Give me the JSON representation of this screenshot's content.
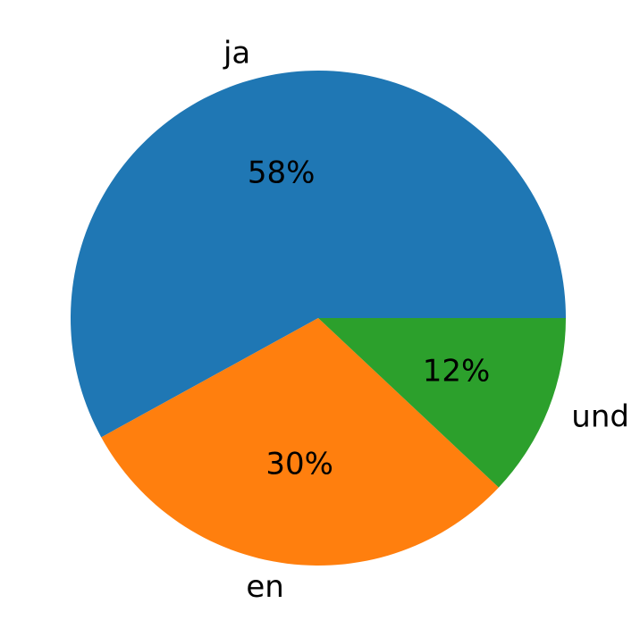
{
  "chart_data": {
    "type": "pie",
    "categories": [
      "ja",
      "en",
      "und"
    ],
    "values": [
      58,
      30,
      12
    ],
    "value_labels": [
      "58%",
      "30%",
      "12%"
    ],
    "colors": [
      "#1f77b4",
      "#ff7f0e",
      "#2ca02c"
    ]
  }
}
